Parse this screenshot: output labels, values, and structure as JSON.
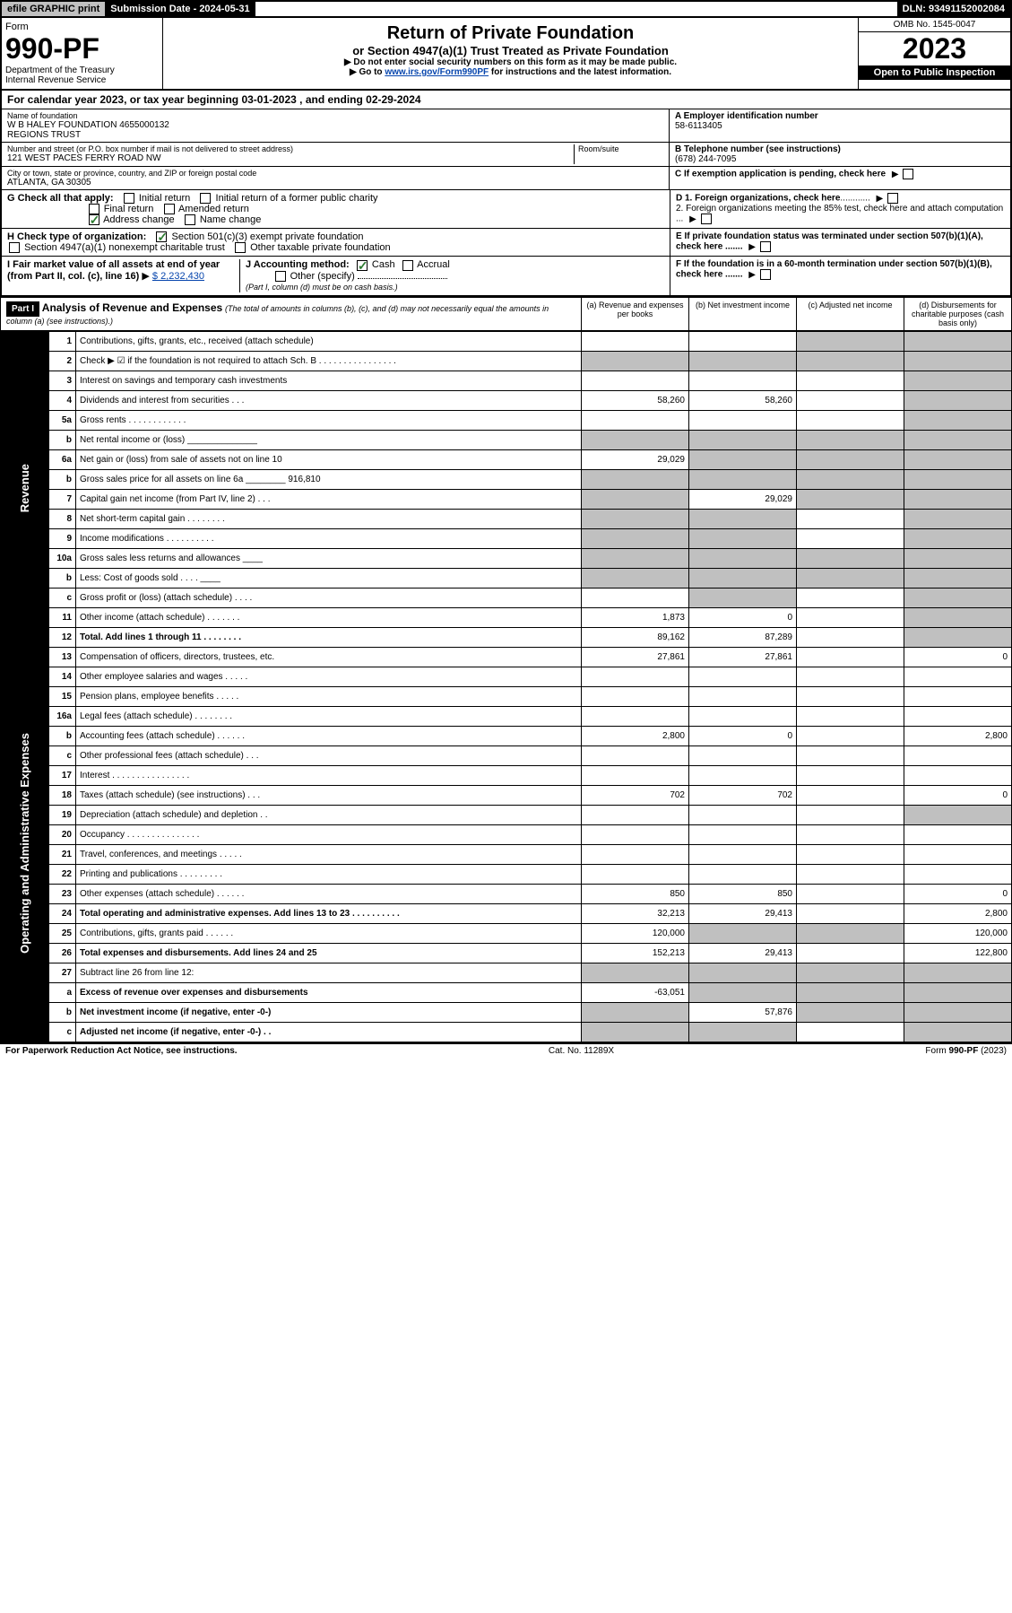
{
  "top": {
    "efile": "efile GRAPHIC print",
    "sub_label": "Submission Date - 2024-05-31",
    "dln": "DLN: 93491152002084"
  },
  "header": {
    "form_label": "Form",
    "form_num": "990-PF",
    "dept1": "Department of the Treasury",
    "dept2": "Internal Revenue Service",
    "title": "Return of Private Foundation",
    "subtitle": "or Section 4947(a)(1) Trust Treated as Private Foundation",
    "note1": "▶ Do not enter social security numbers on this form as it may be made public.",
    "note2": "▶ Go to www.irs.gov/Form990PF for instructions and the latest information.",
    "omb": "OMB No. 1545-0047",
    "year": "2023",
    "open": "Open to Public Inspection"
  },
  "cal": "For calendar year 2023, or tax year beginning 03-01-2023               , and ending 02-29-2024",
  "ident": {
    "name_label": "Name of foundation",
    "name": "W B HALEY FOUNDATION 4655000132\nREGIONS TRUST",
    "ein_label": "A Employer identification number",
    "ein": "58-6113405",
    "addr_label": "Number and street (or P.O. box number if mail is not delivered to street address)",
    "addr": "121 WEST PACES FERRY ROAD NW",
    "room_label": "Room/suite",
    "tel_label": "B Telephone number (see instructions)",
    "tel": "(678) 244-7095",
    "city_label": "City or town, state or province, country, and ZIP or foreign postal code",
    "city": "ATLANTA, GA  30305",
    "c_label": "C If exemption application is pending, check here"
  },
  "checks": {
    "g_label": "G Check all that apply:",
    "g_opts": [
      "Initial return",
      "Initial return of a former public charity",
      "Final return",
      "Amended return",
      "Address change",
      "Name change"
    ],
    "d1": "D 1. Foreign organizations, check here",
    "d2": "2. Foreign organizations meeting the 85% test, check here and attach computation ...",
    "h_label": "H Check type of organization:",
    "h_opts": [
      "Section 501(c)(3) exempt private foundation",
      "Section 4947(a)(1) nonexempt charitable trust",
      "Other taxable private foundation"
    ],
    "e_label": "E If private foundation status was terminated under section 507(b)(1)(A), check here .......",
    "i_label": "I Fair market value of all assets at end of year (from Part II, col. (c), line 16)",
    "i_val": "$ 2,232,430",
    "j_label": "J Accounting method:",
    "j_cash": "Cash",
    "j_accrual": "Accrual",
    "j_other": "Other (specify)",
    "j_note": "(Part I, column (d) must be on cash basis.)",
    "f_label": "F If the foundation is in a 60-month termination under section 507(b)(1)(B), check here ......."
  },
  "part1": {
    "label": "Part I",
    "title": "Analysis of Revenue and Expenses",
    "sub": "(The total of amounts in columns (b), (c), and (d) may not necessarily equal the amounts in column (a) (see instructions).)",
    "cols": [
      "(a) Revenue and expenses per books",
      "(b) Net investment income",
      "(c) Adjusted net income",
      "(d) Disbursements for charitable purposes (cash basis only)"
    ]
  },
  "side": {
    "revenue": "Revenue",
    "expenses": "Operating and Administrative Expenses"
  },
  "rows": [
    {
      "n": "1",
      "d": "Contributions, gifts, grants, etc., received (attach schedule)",
      "a": "",
      "b": "",
      "c": "s",
      "dd": "s"
    },
    {
      "n": "2",
      "d": "Check ▶ ☑ if the foundation is not required to attach Sch. B  . . . . . . . . . . . . . . . .",
      "a": "s",
      "b": "s",
      "c": "s",
      "dd": "s"
    },
    {
      "n": "3",
      "d": "Interest on savings and temporary cash investments",
      "a": "",
      "b": "",
      "c": "",
      "dd": "s"
    },
    {
      "n": "4",
      "d": "Dividends and interest from securities  . . .",
      "a": "58,260",
      "b": "58,260",
      "c": "",
      "dd": "s"
    },
    {
      "n": "5a",
      "d": "Gross rents  . . . . . . . . . . . .",
      "a": "",
      "b": "",
      "c": "",
      "dd": "s"
    },
    {
      "n": "b",
      "d": "Net rental income or (loss) ______________",
      "a": "s",
      "b": "s",
      "c": "s",
      "dd": "s"
    },
    {
      "n": "6a",
      "d": "Net gain or (loss) from sale of assets not on line 10",
      "a": "29,029",
      "b": "s",
      "c": "s",
      "dd": "s"
    },
    {
      "n": "b",
      "d": "Gross sales price for all assets on line 6a ________ 916,810",
      "a": "s",
      "b": "s",
      "c": "s",
      "dd": "s"
    },
    {
      "n": "7",
      "d": "Capital gain net income (from Part IV, line 2)  . . .",
      "a": "s",
      "b": "29,029",
      "c": "s",
      "dd": "s"
    },
    {
      "n": "8",
      "d": "Net short-term capital gain  . . . . . . . .",
      "a": "s",
      "b": "s",
      "c": "",
      "dd": "s"
    },
    {
      "n": "9",
      "d": "Income modifications  . . . . . . . . . .",
      "a": "s",
      "b": "s",
      "c": "",
      "dd": "s"
    },
    {
      "n": "10a",
      "d": "Gross sales less returns and allowances ____",
      "a": "s",
      "b": "s",
      "c": "s",
      "dd": "s"
    },
    {
      "n": "b",
      "d": "Less: Cost of goods sold  . . . . ____",
      "a": "s",
      "b": "s",
      "c": "s",
      "dd": "s"
    },
    {
      "n": "c",
      "d": "Gross profit or (loss) (attach schedule)  . . . .",
      "a": "",
      "b": "s",
      "c": "",
      "dd": "s"
    },
    {
      "n": "11",
      "d": "Other income (attach schedule)  . . . . . . .",
      "a": "1,873",
      "b": "0",
      "c": "",
      "dd": "s"
    },
    {
      "n": "12",
      "d": "Total. Add lines 1 through 11  . . . . . . . .",
      "a": "89,162",
      "b": "87,289",
      "c": "",
      "dd": "s",
      "bold": true
    },
    {
      "n": "13",
      "d": "Compensation of officers, directors, trustees, etc.",
      "a": "27,861",
      "b": "27,861",
      "c": "",
      "dd": "0"
    },
    {
      "n": "14",
      "d": "Other employee salaries and wages  . . . . .",
      "a": "",
      "b": "",
      "c": "",
      "dd": ""
    },
    {
      "n": "15",
      "d": "Pension plans, employee benefits  . . . . .",
      "a": "",
      "b": "",
      "c": "",
      "dd": ""
    },
    {
      "n": "16a",
      "d": "Legal fees (attach schedule)  . . . . . . . .",
      "a": "",
      "b": "",
      "c": "",
      "dd": ""
    },
    {
      "n": "b",
      "d": "Accounting fees (attach schedule)  . . . . . .",
      "a": "2,800",
      "b": "0",
      "c": "",
      "dd": "2,800"
    },
    {
      "n": "c",
      "d": "Other professional fees (attach schedule)  . . .",
      "a": "",
      "b": "",
      "c": "",
      "dd": ""
    },
    {
      "n": "17",
      "d": "Interest  . . . . . . . . . . . . . . . .",
      "a": "",
      "b": "",
      "c": "",
      "dd": ""
    },
    {
      "n": "18",
      "d": "Taxes (attach schedule) (see instructions)  . . .",
      "a": "702",
      "b": "702",
      "c": "",
      "dd": "0"
    },
    {
      "n": "19",
      "d": "Depreciation (attach schedule) and depletion  . .",
      "a": "",
      "b": "",
      "c": "",
      "dd": "s"
    },
    {
      "n": "20",
      "d": "Occupancy  . . . . . . . . . . . . . . .",
      "a": "",
      "b": "",
      "c": "",
      "dd": ""
    },
    {
      "n": "21",
      "d": "Travel, conferences, and meetings  . . . . .",
      "a": "",
      "b": "",
      "c": "",
      "dd": ""
    },
    {
      "n": "22",
      "d": "Printing and publications  . . . . . . . . .",
      "a": "",
      "b": "",
      "c": "",
      "dd": ""
    },
    {
      "n": "23",
      "d": "Other expenses (attach schedule)  . . . . . .",
      "a": "850",
      "b": "850",
      "c": "",
      "dd": "0"
    },
    {
      "n": "24",
      "d": "Total operating and administrative expenses. Add lines 13 to 23  . . . . . . . . . .",
      "a": "32,213",
      "b": "29,413",
      "c": "",
      "dd": "2,800",
      "bold": true
    },
    {
      "n": "25",
      "d": "Contributions, gifts, grants paid  . . . . . .",
      "a": "120,000",
      "b": "s",
      "c": "s",
      "dd": "120,000"
    },
    {
      "n": "26",
      "d": "Total expenses and disbursements. Add lines 24 and 25",
      "a": "152,213",
      "b": "29,413",
      "c": "",
      "dd": "122,800",
      "bold": true
    },
    {
      "n": "27",
      "d": "Subtract line 26 from line 12:",
      "a": "s",
      "b": "s",
      "c": "s",
      "dd": "s"
    },
    {
      "n": "a",
      "d": "Excess of revenue over expenses and disbursements",
      "a": "-63,051",
      "b": "s",
      "c": "s",
      "dd": "s",
      "bold": true
    },
    {
      "n": "b",
      "d": "Net investment income (if negative, enter -0-)",
      "a": "s",
      "b": "57,876",
      "c": "s",
      "dd": "s",
      "bold": true
    },
    {
      "n": "c",
      "d": "Adjusted net income (if negative, enter -0-) . .",
      "a": "s",
      "b": "s",
      "c": "",
      "dd": "s",
      "bold": true
    }
  ],
  "footer": {
    "left": "For Paperwork Reduction Act Notice, see instructions.",
    "mid": "Cat. No. 11289X",
    "right": "Form 990-PF (2023)"
  }
}
